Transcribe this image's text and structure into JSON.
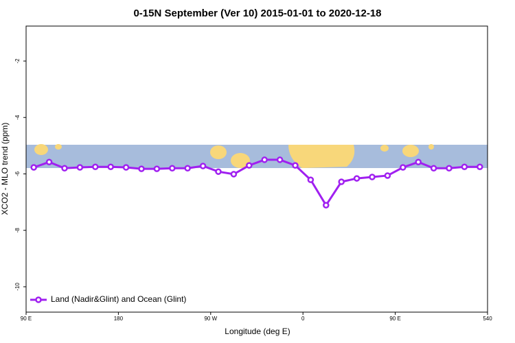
{
  "chart_data": {
    "type": "line",
    "title": "0-15N September (Ver 10)   2015-01-01 to 2020-12-18",
    "x_label": "Longitude (deg E)",
    "y_label": "XCO2 - MLO trend (ppm)",
    "x": [
      97.5,
      112.5,
      127.5,
      142.5,
      157.5,
      172.5,
      187.5,
      202.5,
      217.5,
      232.5,
      247.5,
      262.5,
      277.5,
      292.5,
      307.5,
      322.5,
      337.5,
      352.5,
      367.5,
      382.5,
      397.5,
      412.5,
      427.5,
      442.5,
      457.5,
      472.5,
      487.5,
      502.5,
      517.5,
      532.5
    ],
    "series": [
      {
        "name": "Land (Nadir&Glint) and Ocean (Glint)",
        "color": "#a020f0",
        "values": [
          -5.77,
          -5.58,
          -5.8,
          -5.77,
          -5.75,
          -5.75,
          -5.77,
          -5.82,
          -5.82,
          -5.8,
          -5.8,
          -5.72,
          -5.92,
          -6.01,
          -5.7,
          -5.5,
          -5.5,
          -5.7,
          -6.21,
          -7.11,
          -6.28,
          -6.16,
          -6.11,
          -6.06,
          -5.77,
          -5.58,
          -5.8,
          -5.8,
          -5.75,
          -5.75
        ]
      }
    ],
    "xlim": [
      90,
      540
    ],
    "xticks": [
      {
        "value": 90,
        "label": "90 E"
      },
      180,
      {
        "value": 270,
        "label": "90 W"
      },
      {
        "value": 360,
        "label": "0"
      },
      {
        "value": 450,
        "label": "90 E"
      },
      540
    ],
    "ylim": [
      -10.9,
      -0.76
    ],
    "yticks": [
      -10,
      -8,
      -6,
      -4,
      -2
    ],
    "legend": "bottom-left"
  }
}
